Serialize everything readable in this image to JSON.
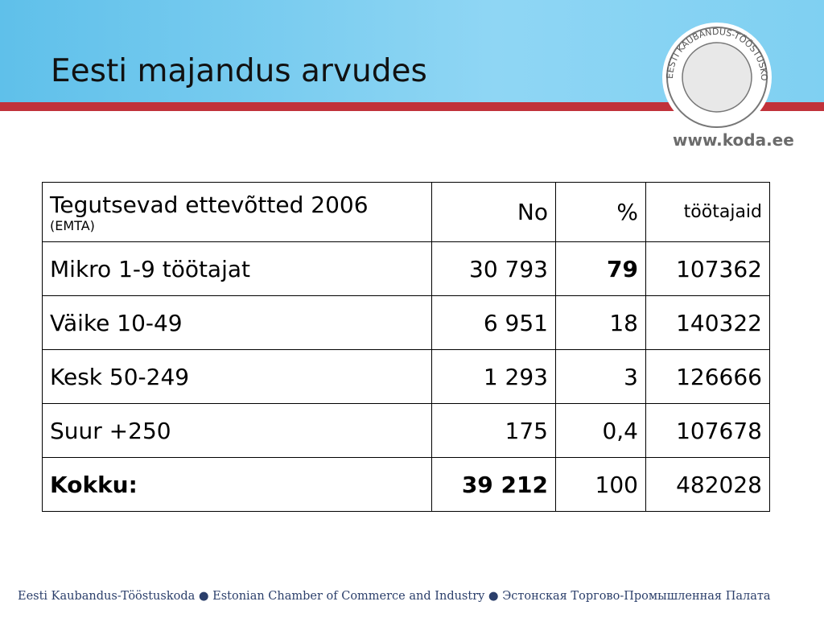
{
  "header": {
    "title": "Eesti majandus arvudes",
    "logo_text": "EESTI KAUBANDUS-TÖÖSTUSKODA",
    "website": "www.koda.ee"
  },
  "table": {
    "header": {
      "label": "Tegutsevad ettevõtted 2006",
      "note": "(EMTA)",
      "columns": [
        "No",
        "%",
        "töötajaid"
      ]
    },
    "rows": [
      [
        "Mikro 1-9 töötajat",
        "30 793",
        "79",
        "107362"
      ],
      [
        "Väike 10-49",
        "6 951",
        "18",
        "140322"
      ],
      [
        "Kesk 50-249",
        "1 293",
        "3",
        "126666"
      ],
      [
        "Suur +250",
        "175",
        "0,4",
        "107678"
      ],
      [
        "Kokku:",
        "39 212",
        "100",
        "482028"
      ]
    ]
  },
  "footer": {
    "text": "Eesti Kaubandus-Tööstuskoda ● Estonian Chamber of Commerce and Industry ● Эстонская Торгово-Промышленная Палата"
  }
}
